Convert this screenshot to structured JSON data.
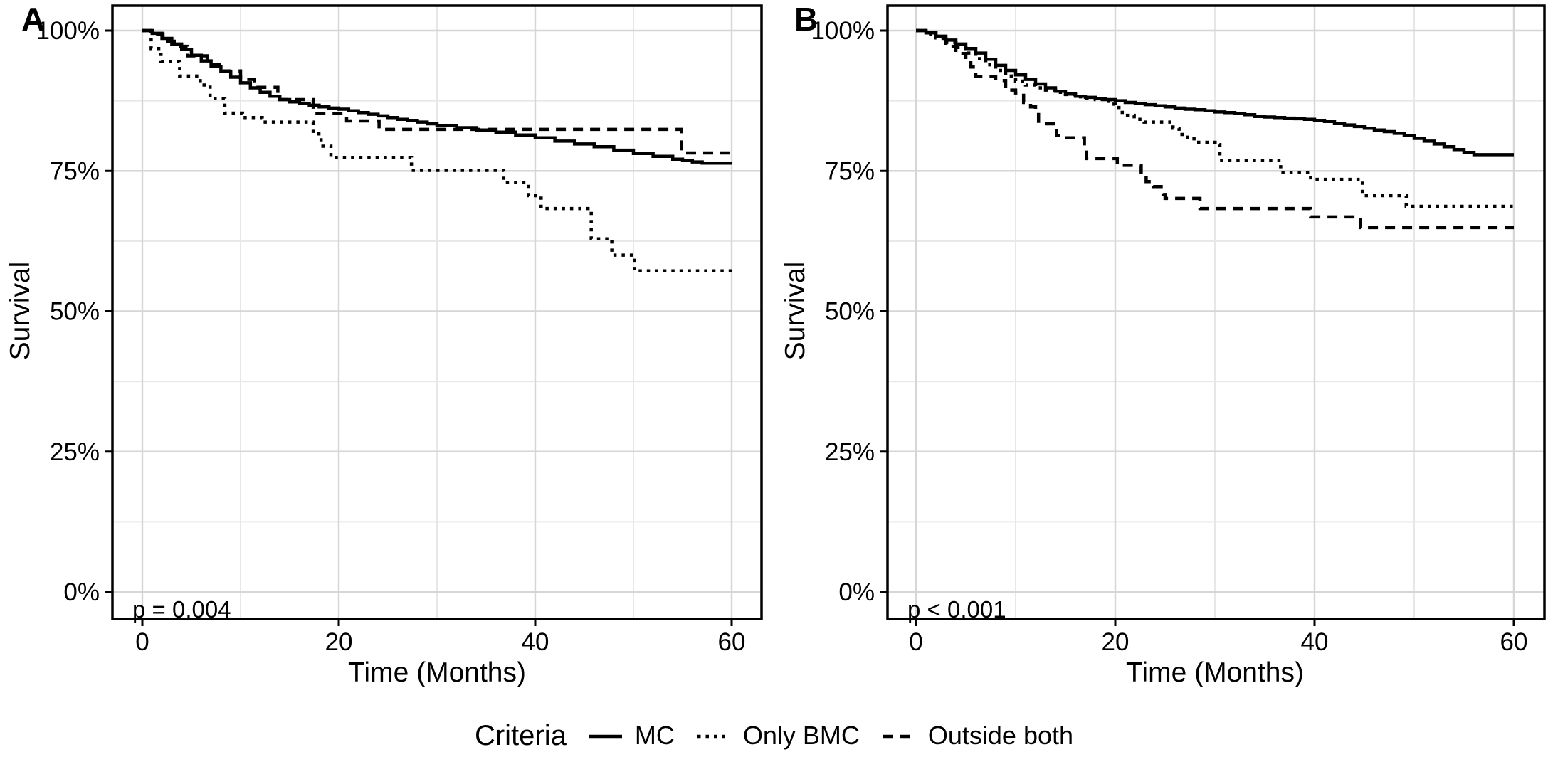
{
  "figure": {
    "background": "#ffffff",
    "line_color": "#000000",
    "grid_major_color": "#d6d6d6",
    "grid_minor_color": "#e7e7e7",
    "border_color": "#000000",
    "text_color": "#000000"
  },
  "legend": {
    "title": "Criteria",
    "items": [
      {
        "label": "MC",
        "dash": "solid"
      },
      {
        "label": "Only BMC",
        "dash": "dotted"
      },
      {
        "label": "Outside both",
        "dash": "dashed"
      }
    ]
  },
  "chart_data": [
    {
      "type": "line",
      "subtype": "kaplan-meier-step",
      "panel_label": "A",
      "annotation": "p = 0.004",
      "xlabel": "Time (Months)",
      "ylabel": "Survival",
      "xlim": [
        0,
        60
      ],
      "ylim": [
        0,
        100
      ],
      "xtick_values": [
        0,
        20,
        40,
        60
      ],
      "xtick_labels": [
        "0",
        "20",
        "40",
        "60"
      ],
      "ytick_values": [
        0,
        25,
        50,
        75,
        100
      ],
      "ytick_labels": [
        "0%",
        "25%",
        "50%",
        "75%",
        "100%"
      ],
      "x_minor": [
        10,
        30,
        50
      ],
      "y_minor": [
        12.5,
        37.5,
        62.5,
        87.5
      ],
      "grid": true,
      "legend_position": "bottom-shared",
      "series": [
        {
          "name": "MC",
          "style": "solid",
          "points": [
            [
              0,
              100
            ],
            [
              1,
              99.5
            ],
            [
              2,
              98.6
            ],
            [
              3,
              97.6
            ],
            [
              4,
              96.6
            ],
            [
              5,
              95.6
            ],
            [
              6,
              94.6
            ],
            [
              7,
              93.6
            ],
            [
              8,
              92.7
            ],
            [
              9,
              91.7
            ],
            [
              10,
              90.7
            ],
            [
              11,
              89.8
            ],
            [
              12,
              89.0
            ],
            [
              13,
              88.3
            ],
            [
              14,
              87.7
            ],
            [
              15,
              87.3
            ],
            [
              16,
              87.0
            ],
            [
              17,
              86.7
            ],
            [
              18,
              86.4
            ],
            [
              19,
              86.2
            ],
            [
              20,
              86.0
            ],
            [
              21,
              85.7
            ],
            [
              22,
              85.4
            ],
            [
              23,
              85.1
            ],
            [
              24,
              84.8
            ],
            [
              25,
              84.5
            ],
            [
              26,
              84.2
            ],
            [
              27,
              84.0
            ],
            [
              28,
              83.7
            ],
            [
              29,
              83.4
            ],
            [
              30,
              83.1
            ],
            [
              32,
              82.7
            ],
            [
              34,
              82.3
            ],
            [
              36,
              81.9
            ],
            [
              38,
              81.4
            ],
            [
              40,
              80.9
            ],
            [
              42,
              80.3
            ],
            [
              44,
              79.8
            ],
            [
              46,
              79.3
            ],
            [
              48,
              78.7
            ],
            [
              50,
              78.1
            ],
            [
              52,
              77.6
            ],
            [
              54,
              77.1
            ],
            [
              55,
              76.9
            ],
            [
              56,
              76.6
            ],
            [
              57,
              76.4
            ],
            [
              60,
              76.4
            ]
          ]
        },
        {
          "name": "Only BMC",
          "style": "dotted",
          "points": [
            [
              0,
              100
            ],
            [
              0.9,
              96.8
            ],
            [
              1.9,
              94.5
            ],
            [
              3.7,
              94.5
            ],
            [
              3.8,
              91.9
            ],
            [
              5.8,
              91.9
            ],
            [
              5.9,
              90.3
            ],
            [
              6.8,
              90.3
            ],
            [
              6.9,
              87.9
            ],
            [
              8.2,
              87.9
            ],
            [
              8.4,
              85.3
            ],
            [
              10,
              85.3
            ],
            [
              10.2,
              84.5
            ],
            [
              12,
              84.5
            ],
            [
              12.2,
              83.7
            ],
            [
              17.2,
              83.7
            ],
            [
              17.4,
              81.6
            ],
            [
              18.2,
              79.4
            ],
            [
              19.2,
              77.4
            ],
            [
              27.2,
              77.4
            ],
            [
              27.4,
              75.1
            ],
            [
              36.6,
              75.1
            ],
            [
              36.8,
              72.9
            ],
            [
              39.1,
              72.9
            ],
            [
              39.3,
              70.6
            ],
            [
              40.4,
              70.6
            ],
            [
              40.6,
              68.3
            ],
            [
              45.5,
              68.3
            ],
            [
              45.7,
              62.9
            ],
            [
              47.6,
              62.9
            ],
            [
              47.8,
              60.0
            ],
            [
              49.9,
              60.0
            ],
            [
              50.1,
              57.2
            ],
            [
              60,
              57.2
            ]
          ]
        },
        {
          "name": "Outside both",
          "style": "dashed",
          "points": [
            [
              0,
              100
            ],
            [
              1.3,
              100
            ],
            [
              1.4,
              99.4
            ],
            [
              2,
              99.4
            ],
            [
              2.1,
              98.1
            ],
            [
              3.8,
              98.1
            ],
            [
              3.9,
              97.2
            ],
            [
              4.5,
              97.2
            ],
            [
              4.6,
              95.5
            ],
            [
              6.5,
              95.5
            ],
            [
              6.6,
              94.0
            ],
            [
              8.1,
              94.0
            ],
            [
              8.2,
              92.8
            ],
            [
              9.9,
              92.8
            ],
            [
              10,
              91.3
            ],
            [
              11.3,
              91.3
            ],
            [
              11.4,
              89.9
            ],
            [
              13.6,
              89.9
            ],
            [
              13.8,
              87.7
            ],
            [
              17.2,
              87.7
            ],
            [
              17.4,
              85.2
            ],
            [
              20.6,
              85.2
            ],
            [
              20.8,
              83.9
            ],
            [
              23.9,
              83.9
            ],
            [
              24.1,
              82.4
            ],
            [
              54.7,
              82.4
            ],
            [
              54.9,
              78.2
            ],
            [
              60,
              78.2
            ]
          ]
        }
      ]
    },
    {
      "type": "line",
      "subtype": "kaplan-meier-step",
      "panel_label": "B",
      "annotation": "p < 0.001",
      "xlabel": "Time (Months)",
      "ylabel": "Survival",
      "xlim": [
        0,
        60
      ],
      "ylim": [
        0,
        100
      ],
      "xtick_values": [
        0,
        20,
        40,
        60
      ],
      "xtick_labels": [
        "0",
        "20",
        "40",
        "60"
      ],
      "ytick_values": [
        0,
        25,
        50,
        75,
        100
      ],
      "ytick_labels": [
        "0%",
        "25%",
        "50%",
        "75%",
        "100%"
      ],
      "x_minor": [
        10,
        30,
        50
      ],
      "y_minor": [
        12.5,
        37.5,
        62.5,
        87.5
      ],
      "grid": true,
      "legend_position": "bottom-shared",
      "series": [
        {
          "name": "MC",
          "style": "solid",
          "points": [
            [
              0,
              100
            ],
            [
              1,
              99.6
            ],
            [
              2,
              99.0
            ],
            [
              3,
              98.3
            ],
            [
              4,
              97.6
            ],
            [
              5,
              96.8
            ],
            [
              6,
              96.0
            ],
            [
              7,
              94.9
            ],
            [
              8,
              93.8
            ],
            [
              9,
              92.9
            ],
            [
              10,
              92.1
            ],
            [
              11,
              91.3
            ],
            [
              12,
              90.5
            ],
            [
              13,
              89.8
            ],
            [
              14,
              89.2
            ],
            [
              15,
              88.7
            ],
            [
              16,
              88.3
            ],
            [
              17,
              88.1
            ],
            [
              18,
              87.9
            ],
            [
              19,
              87.7
            ],
            [
              20,
              87.5
            ],
            [
              21,
              87.2
            ],
            [
              22,
              87.0
            ],
            [
              23,
              86.8
            ],
            [
              24,
              86.6
            ],
            [
              25,
              86.4
            ],
            [
              26,
              86.2
            ],
            [
              27,
              86.0
            ],
            [
              28,
              85.9
            ],
            [
              29,
              85.7
            ],
            [
              30,
              85.5
            ],
            [
              31,
              85.4
            ],
            [
              32,
              85.2
            ],
            [
              33,
              85.0
            ],
            [
              34,
              84.7
            ],
            [
              35,
              84.6
            ],
            [
              36,
              84.5
            ],
            [
              37,
              84.4
            ],
            [
              38,
              84.3
            ],
            [
              39,
              84.2
            ],
            [
              40,
              84.0
            ],
            [
              41,
              83.8
            ],
            [
              42,
              83.5
            ],
            [
              43,
              83.2
            ],
            [
              44,
              82.9
            ],
            [
              45,
              82.6
            ],
            [
              46,
              82.3
            ],
            [
              47,
              82.0
            ],
            [
              48,
              81.7
            ],
            [
              49,
              81.3
            ],
            [
              50,
              80.8
            ],
            [
              51,
              80.3
            ],
            [
              52,
              79.8
            ],
            [
              53,
              79.3
            ],
            [
              54,
              78.8
            ],
            [
              55,
              78.3
            ],
            [
              56,
              77.9
            ],
            [
              60,
              77.9
            ]
          ]
        },
        {
          "name": "Only BMC",
          "style": "dotted",
          "points": [
            [
              0,
              100
            ],
            [
              1,
              99.4
            ],
            [
              2,
              98.7
            ],
            [
              3,
              97.9
            ],
            [
              4,
              97.0
            ],
            [
              5,
              96.0
            ],
            [
              6,
              95.0
            ],
            [
              7,
              93.9
            ],
            [
              8,
              92.9
            ],
            [
              9,
              91.9
            ],
            [
              10,
              91.0
            ],
            [
              11,
              90.3
            ],
            [
              12,
              89.8
            ],
            [
              13,
              89.4
            ],
            [
              14,
              89.0
            ],
            [
              15,
              88.6
            ],
            [
              16,
              88.2
            ],
            [
              17,
              87.9
            ],
            [
              18,
              87.7
            ],
            [
              19,
              87.4
            ],
            [
              19.5,
              86.9
            ],
            [
              20,
              86.3
            ],
            [
              20.7,
              84.9
            ],
            [
              21.9,
              84.2
            ],
            [
              22.9,
              83.7
            ],
            [
              25.5,
              83.7
            ],
            [
              25.8,
              82.6
            ],
            [
              26.4,
              81.5
            ],
            [
              27,
              81.0
            ],
            [
              27.9,
              80.1
            ],
            [
              30.2,
              79.7
            ],
            [
              30.5,
              76.9
            ],
            [
              36.4,
              76.9
            ],
            [
              36.6,
              74.7
            ],
            [
              39.4,
              74.7
            ],
            [
              39.6,
              73.5
            ],
            [
              44.6,
              73.5
            ],
            [
              44.8,
              70.6
            ],
            [
              49,
              70.6
            ],
            [
              49.2,
              68.7
            ],
            [
              60,
              68.7
            ]
          ]
        },
        {
          "name": "Outside both",
          "style": "dashed",
          "points": [
            [
              0,
              100
            ],
            [
              1,
              99.6
            ],
            [
              2,
              98.6
            ],
            [
              3,
              97.2
            ],
            [
              4,
              95.9
            ],
            [
              5,
              94.6
            ],
            [
              5.5,
              93.5
            ],
            [
              6,
              91.8
            ],
            [
              8,
              91.1
            ],
            [
              9,
              89.4
            ],
            [
              10,
              88.9
            ],
            [
              10.8,
              87.2
            ],
            [
              11.5,
              86.4
            ],
            [
              12,
              85.6
            ],
            [
              12.3,
              83.4
            ],
            [
              13.9,
              83.4
            ],
            [
              14.1,
              81.3
            ],
            [
              14.5,
              80.9
            ],
            [
              16.7,
              80.9
            ],
            [
              16.9,
              78.9
            ],
            [
              17.1,
              77.2
            ],
            [
              20,
              77.2
            ],
            [
              20.2,
              76.0
            ],
            [
              22.4,
              76.0
            ],
            [
              22.6,
              74.3
            ],
            [
              23.1,
              73.1
            ],
            [
              23.8,
              72.2
            ],
            [
              24.8,
              70.8
            ],
            [
              25,
              70.1
            ],
            [
              28.2,
              70.1
            ],
            [
              28.5,
              68.3
            ],
            [
              39.4,
              68.3
            ],
            [
              39.6,
              66.8
            ],
            [
              44.4,
              66.8
            ],
            [
              44.6,
              64.9
            ],
            [
              60,
              64.9
            ]
          ]
        }
      ]
    }
  ]
}
